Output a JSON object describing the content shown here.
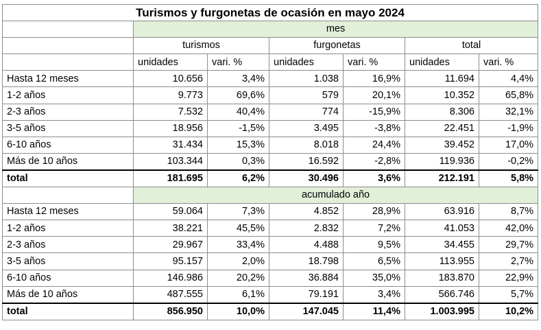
{
  "title": "Turismos y furgonetas de ocasión en mayo 2024",
  "sections": {
    "mes": "mes",
    "acumulado": "acumulado año"
  },
  "groups": [
    "turismos",
    "furgonetas",
    "total"
  ],
  "subheaders": [
    "unidades",
    "vari. %",
    "unidades",
    "vari. %",
    "unidades",
    "vari. %"
  ],
  "mes_rows": [
    {
      "label": "Hasta 12 meses",
      "values": [
        "10.656",
        "3,4%",
        "1.038",
        "16,9%",
        "11.694",
        "4,4%"
      ]
    },
    {
      "label": "1-2 años",
      "values": [
        "9.773",
        "69,6%",
        "579",
        "20,1%",
        "10.352",
        "65,8%"
      ]
    },
    {
      "label": "2-3 años",
      "values": [
        "7.532",
        "40,4%",
        "774",
        "-15,9%",
        "8.306",
        "32,1%"
      ]
    },
    {
      "label": "3-5 años",
      "values": [
        "18.956",
        "-1,5%",
        "3.495",
        "-3,8%",
        "22.451",
        "-1,9%"
      ]
    },
    {
      "label": "6-10 años",
      "values": [
        "31.434",
        "15,3%",
        "8.018",
        "24,4%",
        "39.452",
        "17,0%"
      ]
    },
    {
      "label": "Más de 10 años",
      "values": [
        "103.344",
        "0,3%",
        "16.592",
        "-2,8%",
        "119.936",
        "-0,2%"
      ]
    },
    {
      "label": "total",
      "values": [
        "181.695",
        "6,2%",
        "30.496",
        "3,6%",
        "212.191",
        "5,8%"
      ]
    }
  ],
  "acumulado_rows": [
    {
      "label": "Hasta 12 meses",
      "values": [
        "59.064",
        "7,3%",
        "4.852",
        "28,9%",
        "63.916",
        "8,7%"
      ]
    },
    {
      "label": "1-2 años",
      "values": [
        "38.221",
        "45,5%",
        "2.832",
        "7,2%",
        "41.053",
        "42,0%"
      ]
    },
    {
      "label": "2-3 años",
      "values": [
        "29.967",
        "33,4%",
        "4.488",
        "9,5%",
        "34.455",
        "29,7%"
      ]
    },
    {
      "label": "3-5 años",
      "values": [
        "95.157",
        "2,0%",
        "18.798",
        "6,5%",
        "113.955",
        "2,7%"
      ]
    },
    {
      "label": "6-10 años",
      "values": [
        "146.986",
        "20,2%",
        "36.884",
        "35,0%",
        "183.870",
        "22,9%"
      ]
    },
    {
      "label": "Más de 10 años",
      "values": [
        "487.555",
        "6,1%",
        "79.191",
        "3,4%",
        "566.746",
        "5,7%"
      ]
    },
    {
      "label": "total",
      "values": [
        "856.950",
        "10,0%",
        "147.045",
        "11,4%",
        "1.003.995",
        "10,2%"
      ]
    }
  ],
  "colors": {
    "section_band": "#e2efd9",
    "grid": "#8c8c8c"
  }
}
